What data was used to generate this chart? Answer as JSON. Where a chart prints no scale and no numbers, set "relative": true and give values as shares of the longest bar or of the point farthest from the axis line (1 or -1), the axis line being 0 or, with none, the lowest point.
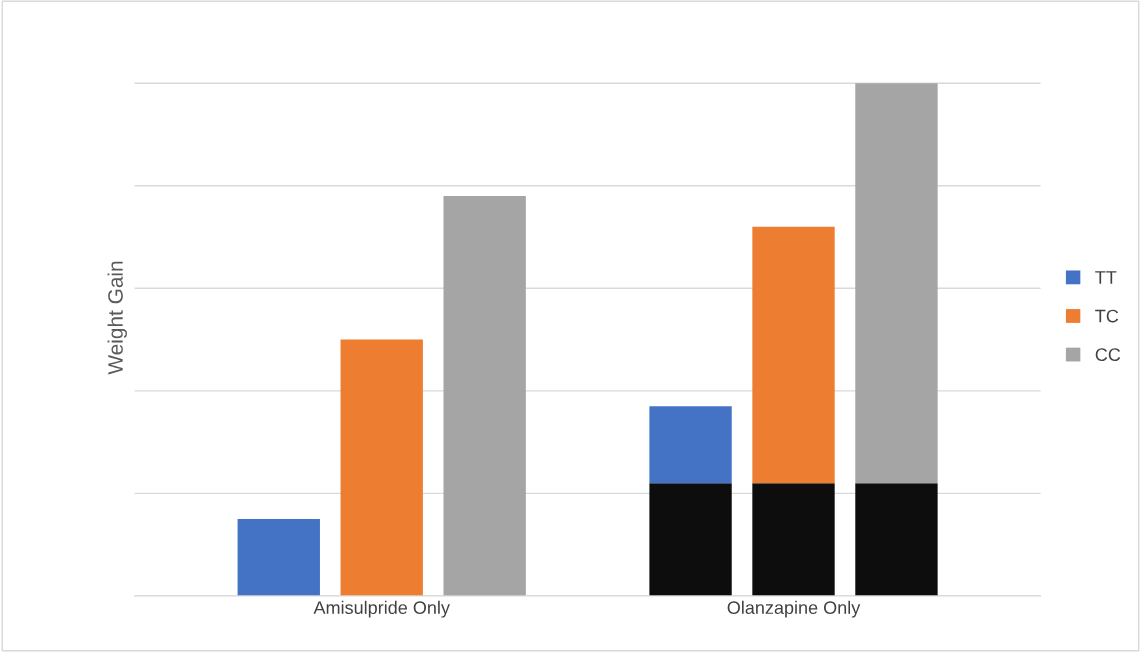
{
  "chart_data": {
    "type": "bar",
    "relative": true,
    "ylabel": "Weight Gain",
    "stacked": true,
    "categories": [
      null,
      "Amisulpride Only",
      null,
      null,
      null,
      "Olanzapine Only",
      null
    ],
    "series": [
      {
        "color": "#0d0d0d",
        "values": [
          null,
          null,
          null,
          null,
          0.22,
          0.22,
          0.22
        ]
      },
      {
        "name": "TT",
        "color": "#4472c4",
        "values": [
          0.15,
          null,
          null,
          null,
          0.15,
          null,
          null
        ]
      },
      {
        "name": "TC",
        "color": "#ed7d31",
        "values": [
          null,
          0.5,
          null,
          null,
          null,
          0.5,
          null
        ]
      },
      {
        "name": "CC",
        "color": "#a5a5a5",
        "values": [
          null,
          null,
          0.78,
          null,
          null,
          null,
          0.78
        ]
      }
    ],
    "grid": "y",
    "legend": "right"
  }
}
